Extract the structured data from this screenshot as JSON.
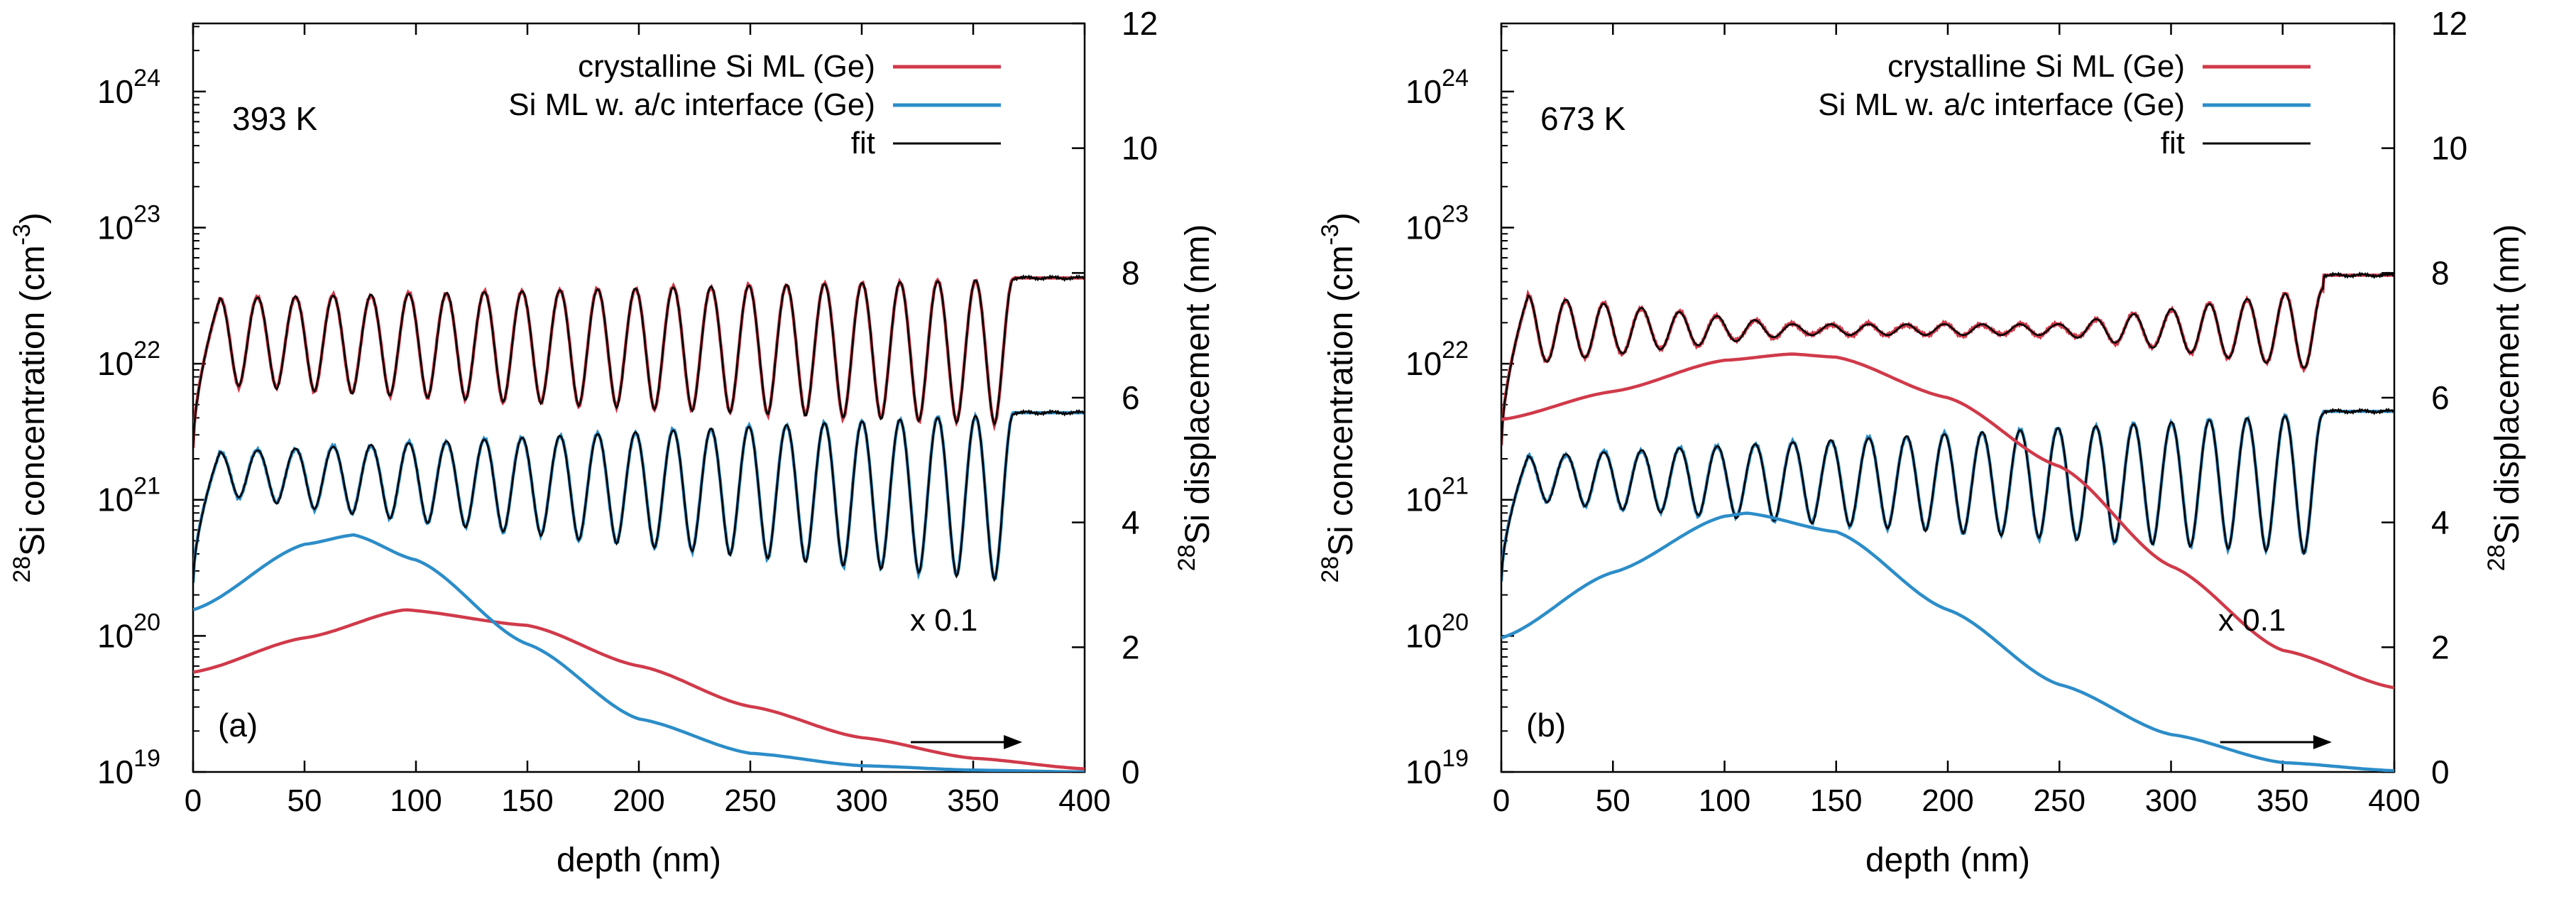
{
  "chart_data": [
    {
      "type": "line",
      "panel_label": "(a)",
      "temperature_label": "393 K",
      "scale_label": "x 0.1",
      "xlabel": "depth (nm)",
      "ylabel": {
        "sup": "28",
        "main": "Si concentration (cm",
        "exp": "-3",
        "close": ")"
      },
      "y2label": {
        "sup": "28",
        "main": "Si displacement (nm)"
      },
      "xlim": [
        0,
        400
      ],
      "xticks": [
        "0",
        "50",
        "100",
        "150",
        "200",
        "250",
        "300",
        "350",
        "400"
      ],
      "ylim_log10": [
        19,
        24.5
      ],
      "yticks": [
        {
          "base": "10",
          "exp": "19"
        },
        {
          "base": "10",
          "exp": "20"
        },
        {
          "base": "10",
          "exp": "21"
        },
        {
          "base": "10",
          "exp": "22"
        },
        {
          "base": "10",
          "exp": "23"
        },
        {
          "base": "10",
          "exp": "24"
        }
      ],
      "y2lim": [
        0,
        12
      ],
      "y2ticks": [
        "0",
        "2",
        "4",
        "6",
        "8",
        "10",
        "12"
      ],
      "legend": [
        {
          "label": "crystalline Si ML (Ge)",
          "color": "#d03a4a"
        },
        {
          "label": "Si ML w. a/c interface (Ge)",
          "color": "#2c8dc8"
        },
        {
          "label": "fit",
          "color": "#000000"
        }
      ],
      "series": [
        {
          "name": "crystalline Si ML (Ge) concentration",
          "color": "#d03a4a",
          "axis": "y",
          "oscillation": {
            "start": 12,
            "end": 368,
            "periods": 21,
            "high_log10": [
              22.48,
              22.62
            ],
            "low_log10": [
              21.85,
              21.55
            ],
            "plateau_log10": 22.63
          }
        },
        {
          "name": "Si ML w. a/c interface (Ge) concentration",
          "color": "#2c8dc8",
          "axis": "y",
          "oscillation": {
            "start": 12,
            "end": 368,
            "periods": 21,
            "high_log10": [
              21.35,
              21.63
            ],
            "low_log10": [
              21.05,
              20.4
            ],
            "plateau_log10": 21.64
          }
        },
        {
          "name": "crystalline Si ML (Ge) displacement",
          "color": "#d03a4a",
          "axis": "y2",
          "x": [
            0,
            50,
            95,
            150,
            200,
            250,
            300,
            350,
            400
          ],
          "y": [
            1.6,
            2.15,
            2.6,
            2.35,
            1.7,
            1.05,
            0.55,
            0.22,
            0.05
          ]
        },
        {
          "name": "Si ML w. a/c interface (Ge) displacement",
          "color": "#2c8dc8",
          "axis": "y2",
          "x": [
            0,
            50,
            72,
            100,
            150,
            200,
            250,
            300,
            350,
            400
          ],
          "y": [
            2.6,
            3.65,
            3.8,
            3.4,
            2.05,
            0.85,
            0.3,
            0.1,
            0.03,
            0.0
          ]
        }
      ]
    },
    {
      "type": "line",
      "panel_label": "(b)",
      "temperature_label": "673 K",
      "scale_label": "x 0.1",
      "xlabel": "depth (nm)",
      "ylabel": {
        "sup": "28",
        "main": "Si concentration (cm",
        "exp": "-3",
        "close": ")"
      },
      "y2label": {
        "sup": "28",
        "main": "Si displacement (nm)"
      },
      "xlim": [
        0,
        400
      ],
      "xticks": [
        "0",
        "50",
        "100",
        "150",
        "200",
        "250",
        "300",
        "350",
        "400"
      ],
      "ylim_log10": [
        19,
        24.5
      ],
      "yticks": [
        {
          "base": "10",
          "exp": "19"
        },
        {
          "base": "10",
          "exp": "20"
        },
        {
          "base": "10",
          "exp": "21"
        },
        {
          "base": "10",
          "exp": "22"
        },
        {
          "base": "10",
          "exp": "23"
        },
        {
          "base": "10",
          "exp": "24"
        }
      ],
      "y2lim": [
        0,
        12
      ],
      "y2ticks": [
        "0",
        "2",
        "4",
        "6",
        "8",
        "10",
        "12"
      ],
      "legend": [
        {
          "label": "crystalline Si ML (Ge)",
          "color": "#d03a4a"
        },
        {
          "label": "Si ML w. a/c interface (Ge)",
          "color": "#2c8dc8"
        },
        {
          "label": "fit",
          "color": "#000000"
        }
      ],
      "series": [
        {
          "name": "crystalline Si ML (Ge) concentration",
          "color": "#d03a4a",
          "axis": "y",
          "oscillation": {
            "start": 12,
            "end": 368,
            "periods": 21,
            "amplitude_profile": [
              0.25,
              0.04,
              0.04,
              0.3
            ],
            "center_log10": 22.25,
            "plateau_log10": 22.65
          }
        },
        {
          "name": "Si ML w. a/c interface (Ge) concentration",
          "color": "#2c8dc8",
          "axis": "y",
          "oscillation": {
            "start": 12,
            "end": 368,
            "periods": 21,
            "high_log10": [
              21.32,
              21.63
            ],
            "low_log10": [
              21.0,
              20.6
            ],
            "plateau_log10": 21.65
          }
        },
        {
          "name": "crystalline Si ML (Ge) displacement",
          "color": "#d03a4a",
          "axis": "y2",
          "x": [
            0,
            50,
            100,
            130,
            150,
            200,
            250,
            300,
            350,
            400
          ],
          "y": [
            5.65,
            6.1,
            6.6,
            6.7,
            6.65,
            6.0,
            4.9,
            3.3,
            1.95,
            1.35
          ]
        },
        {
          "name": "Si ML w. a/c interface (Ge) displacement",
          "color": "#2c8dc8",
          "axis": "y2",
          "x": [
            0,
            50,
            100,
            110,
            150,
            200,
            250,
            300,
            350,
            400
          ],
          "y": [
            2.15,
            3.2,
            4.1,
            4.15,
            3.85,
            2.6,
            1.4,
            0.6,
            0.15,
            0.02
          ]
        }
      ]
    }
  ]
}
